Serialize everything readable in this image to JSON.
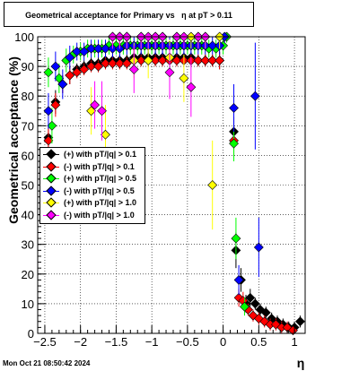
{
  "title": "Geometrical acceptance for Primary vs   η at pT > 0.11",
  "datestamp": "Mon Oct 21 08:50:42 2024",
  "chart_data": {
    "type": "scatter",
    "xlabel": "η",
    "ylabel": "Geometrical acceptance (%)",
    "xlim": [
      -2.6,
      1.15
    ],
    "ylim": [
      0,
      100
    ],
    "grid": true,
    "legend_placement": "middle-left",
    "x_ticks": [
      "−2.5",
      "−2",
      "−1.5",
      "−1",
      "−0.5",
      "0",
      "0.5",
      "1"
    ],
    "x_tick_values": [
      -2.5,
      -2,
      -1.5,
      -1,
      -0.5,
      0,
      0.5,
      1
    ],
    "y_ticks": [
      "0",
      "10",
      "20",
      "30",
      "40",
      "50",
      "60",
      "70",
      "80",
      "90",
      "100"
    ],
    "y_tick_values": [
      0,
      10,
      20,
      30,
      40,
      50,
      60,
      70,
      80,
      90,
      100
    ],
    "series": [
      {
        "name": "(+) with pT/|q| > 0.1",
        "color": "#000000",
        "z": 1,
        "points": [
          [
            -2.45,
            66,
            4
          ],
          [
            -2.35,
            78,
            4
          ],
          [
            -2.25,
            84,
            3
          ],
          [
            -2.15,
            87,
            3
          ],
          [
            -2.05,
            89,
            2
          ],
          [
            -1.95,
            90,
            2
          ],
          [
            -1.85,
            91,
            2
          ],
          [
            -1.75,
            91,
            2
          ],
          [
            -1.65,
            92,
            2
          ],
          [
            -1.55,
            92,
            2
          ],
          [
            -1.45,
            92,
            2
          ],
          [
            -1.35,
            92,
            2
          ],
          [
            -1.25,
            93,
            2
          ],
          [
            -1.15,
            93,
            2
          ],
          [
            -1.05,
            93,
            2
          ],
          [
            -0.95,
            93,
            2
          ],
          [
            -0.85,
            93,
            2
          ],
          [
            -0.75,
            93,
            2
          ],
          [
            -0.65,
            93,
            2
          ],
          [
            -0.55,
            93,
            2
          ],
          [
            -0.45,
            93,
            2
          ],
          [
            -0.35,
            92,
            2
          ],
          [
            -0.25,
            92,
            2
          ],
          [
            -0.15,
            92,
            2
          ],
          [
            -0.05,
            92,
            3
          ],
          [
            0.15,
            68,
            5
          ],
          [
            0.18,
            28,
            6
          ],
          [
            0.25,
            18,
            4
          ],
          [
            0.32,
            10,
            3
          ],
          [
            0.38,
            12,
            3
          ],
          [
            0.45,
            10,
            2
          ],
          [
            0.52,
            8,
            2
          ],
          [
            0.6,
            7,
            2
          ],
          [
            0.68,
            5,
            2
          ],
          [
            0.76,
            4,
            2
          ],
          [
            0.84,
            3,
            2
          ],
          [
            0.92,
            2,
            2
          ],
          [
            1.0,
            2,
            2
          ],
          [
            1.08,
            4,
            2
          ]
        ]
      },
      {
        "name": "(-) with pT/|q| > 0.1",
        "color": "#ff0000",
        "z": 2,
        "points": [
          [
            -2.45,
            65,
            4
          ],
          [
            -2.35,
            77,
            4
          ],
          [
            -2.25,
            84,
            3
          ],
          [
            -2.15,
            87,
            3
          ],
          [
            -2.05,
            88,
            2
          ],
          [
            -1.95,
            89,
            2
          ],
          [
            -1.85,
            90,
            2
          ],
          [
            -1.75,
            90,
            2
          ],
          [
            -1.65,
            91,
            2
          ],
          [
            -1.55,
            91,
            2
          ],
          [
            -1.45,
            91,
            2
          ],
          [
            -1.35,
            91,
            2
          ],
          [
            -1.25,
            92,
            2
          ],
          [
            -1.15,
            92,
            2
          ],
          [
            -1.05,
            92,
            2
          ],
          [
            -0.95,
            92,
            2
          ],
          [
            -0.85,
            92,
            2
          ],
          [
            -0.75,
            92,
            2
          ],
          [
            -0.65,
            92,
            2
          ],
          [
            -0.55,
            92,
            2
          ],
          [
            -0.45,
            92,
            2
          ],
          [
            -0.35,
            92,
            2
          ],
          [
            -0.25,
            92,
            2
          ],
          [
            -0.15,
            92,
            2
          ],
          [
            -0.05,
            92,
            3
          ],
          [
            0.15,
            65,
            5
          ],
          [
            0.22,
            12,
            3
          ],
          [
            0.28,
            11,
            3
          ],
          [
            0.35,
            8,
            2
          ],
          [
            0.42,
            6,
            2
          ],
          [
            0.5,
            5,
            2
          ],
          [
            0.58,
            4,
            2
          ],
          [
            0.66,
            3,
            2
          ],
          [
            0.74,
            3,
            2
          ],
          [
            0.82,
            2,
            2
          ],
          [
            0.9,
            2,
            2
          ],
          [
            0.98,
            1,
            1
          ]
        ]
      },
      {
        "name": "(+) with pT/|q| > 0.5",
        "color": "#00ff00",
        "z": 3,
        "points": [
          [
            -2.45,
            88,
            5
          ],
          [
            -2.4,
            70,
            6
          ],
          [
            -2.3,
            86,
            5
          ],
          [
            -2.2,
            92,
            4
          ],
          [
            -2.1,
            94,
            3
          ],
          [
            -2.0,
            95,
            3
          ],
          [
            -1.9,
            96,
            3
          ],
          [
            -1.8,
            96,
            3
          ],
          [
            -1.7,
            96,
            3
          ],
          [
            -1.6,
            97,
            3
          ],
          [
            -1.5,
            97,
            3
          ],
          [
            -1.4,
            97,
            3
          ],
          [
            -1.3,
            97,
            3
          ],
          [
            -1.2,
            97,
            3
          ],
          [
            -1.1,
            97,
            3
          ],
          [
            -1.0,
            97,
            3
          ],
          [
            -0.9,
            97,
            3
          ],
          [
            -0.8,
            97,
            3
          ],
          [
            -0.7,
            97,
            3
          ],
          [
            -0.6,
            97,
            3
          ],
          [
            -0.5,
            97,
            3
          ],
          [
            -0.4,
            97,
            3
          ],
          [
            -0.3,
            97,
            3
          ],
          [
            -0.2,
            96,
            3
          ],
          [
            -0.1,
            96,
            3
          ],
          [
            0.0,
            97,
            3
          ],
          [
            0.05,
            100,
            2
          ],
          [
            0.15,
            64,
            6
          ],
          [
            0.18,
            32,
            7
          ],
          [
            0.3,
            9,
            3
          ]
        ]
      },
      {
        "name": "(-) with pT/|q| > 0.5",
        "color": "#0000ff",
        "z": 4,
        "points": [
          [
            -2.45,
            75,
            6
          ],
          [
            -2.35,
            90,
            5
          ],
          [
            -2.25,
            84,
            5
          ],
          [
            -2.15,
            93,
            4
          ],
          [
            -2.05,
            95,
            3
          ],
          [
            -1.95,
            95,
            3
          ],
          [
            -1.85,
            96,
            3
          ],
          [
            -1.75,
            96,
            3
          ],
          [
            -1.65,
            96,
            3
          ],
          [
            -1.55,
            96,
            3
          ],
          [
            -1.45,
            96,
            3
          ],
          [
            -1.35,
            97,
            3
          ],
          [
            -1.25,
            97,
            3
          ],
          [
            -1.15,
            97,
            3
          ],
          [
            -1.05,
            97,
            3
          ],
          [
            -0.95,
            97,
            3
          ],
          [
            -0.85,
            97,
            3
          ],
          [
            -0.75,
            97,
            3
          ],
          [
            -0.65,
            97,
            3
          ],
          [
            -0.55,
            97,
            3
          ],
          [
            -0.45,
            97,
            3
          ],
          [
            -0.35,
            97,
            3
          ],
          [
            -0.25,
            97,
            3
          ],
          [
            -0.15,
            97,
            3
          ],
          [
            -0.05,
            97,
            3
          ],
          [
            0.02,
            100,
            2
          ],
          [
            0.15,
            76,
            8
          ],
          [
            0.22,
            18,
            5
          ],
          [
            0.45,
            80,
            18
          ],
          [
            0.5,
            29,
            10
          ]
        ]
      },
      {
        "name": "(+) with pT/|q| > 1.0",
        "color": "#ffff00",
        "z": 5,
        "points": [
          [
            -1.85,
            75,
            8
          ],
          [
            -1.65,
            67,
            10
          ],
          [
            -1.55,
            100,
            4
          ],
          [
            -1.45,
            100,
            4
          ],
          [
            -1.35,
            100,
            4
          ],
          [
            -1.25,
            92,
            6
          ],
          [
            -1.15,
            100,
            4
          ],
          [
            -1.05,
            92,
            6
          ],
          [
            -0.95,
            100,
            4
          ],
          [
            -0.85,
            100,
            4
          ],
          [
            -0.75,
            93,
            6
          ],
          [
            -0.65,
            100,
            4
          ],
          [
            -0.55,
            86,
            8
          ],
          [
            -0.45,
            100,
            4
          ],
          [
            -0.35,
            100,
            4
          ],
          [
            -0.25,
            100,
            4
          ],
          [
            -0.15,
            50,
            15
          ],
          [
            -0.05,
            100,
            4
          ]
        ]
      },
      {
        "name": "(-) with pT/|q| > 1.0",
        "color": "#ff00ff",
        "z": 6,
        "points": [
          [
            -1.8,
            77,
            8
          ],
          [
            -1.7,
            75,
            10
          ],
          [
            -1.55,
            100,
            4
          ],
          [
            -1.45,
            100,
            4
          ],
          [
            -1.35,
            100,
            4
          ],
          [
            -1.25,
            89,
            8
          ],
          [
            -1.15,
            100,
            4
          ],
          [
            -1.05,
            100,
            4
          ],
          [
            -0.95,
            100,
            4
          ],
          [
            -0.85,
            100,
            4
          ],
          [
            -0.75,
            88,
            9
          ],
          [
            -0.65,
            100,
            4
          ],
          [
            -0.55,
            100,
            4
          ],
          [
            -0.45,
            83,
            10
          ],
          [
            -0.35,
            100,
            4
          ],
          [
            -0.25,
            100,
            4
          ]
        ]
      }
    ]
  }
}
